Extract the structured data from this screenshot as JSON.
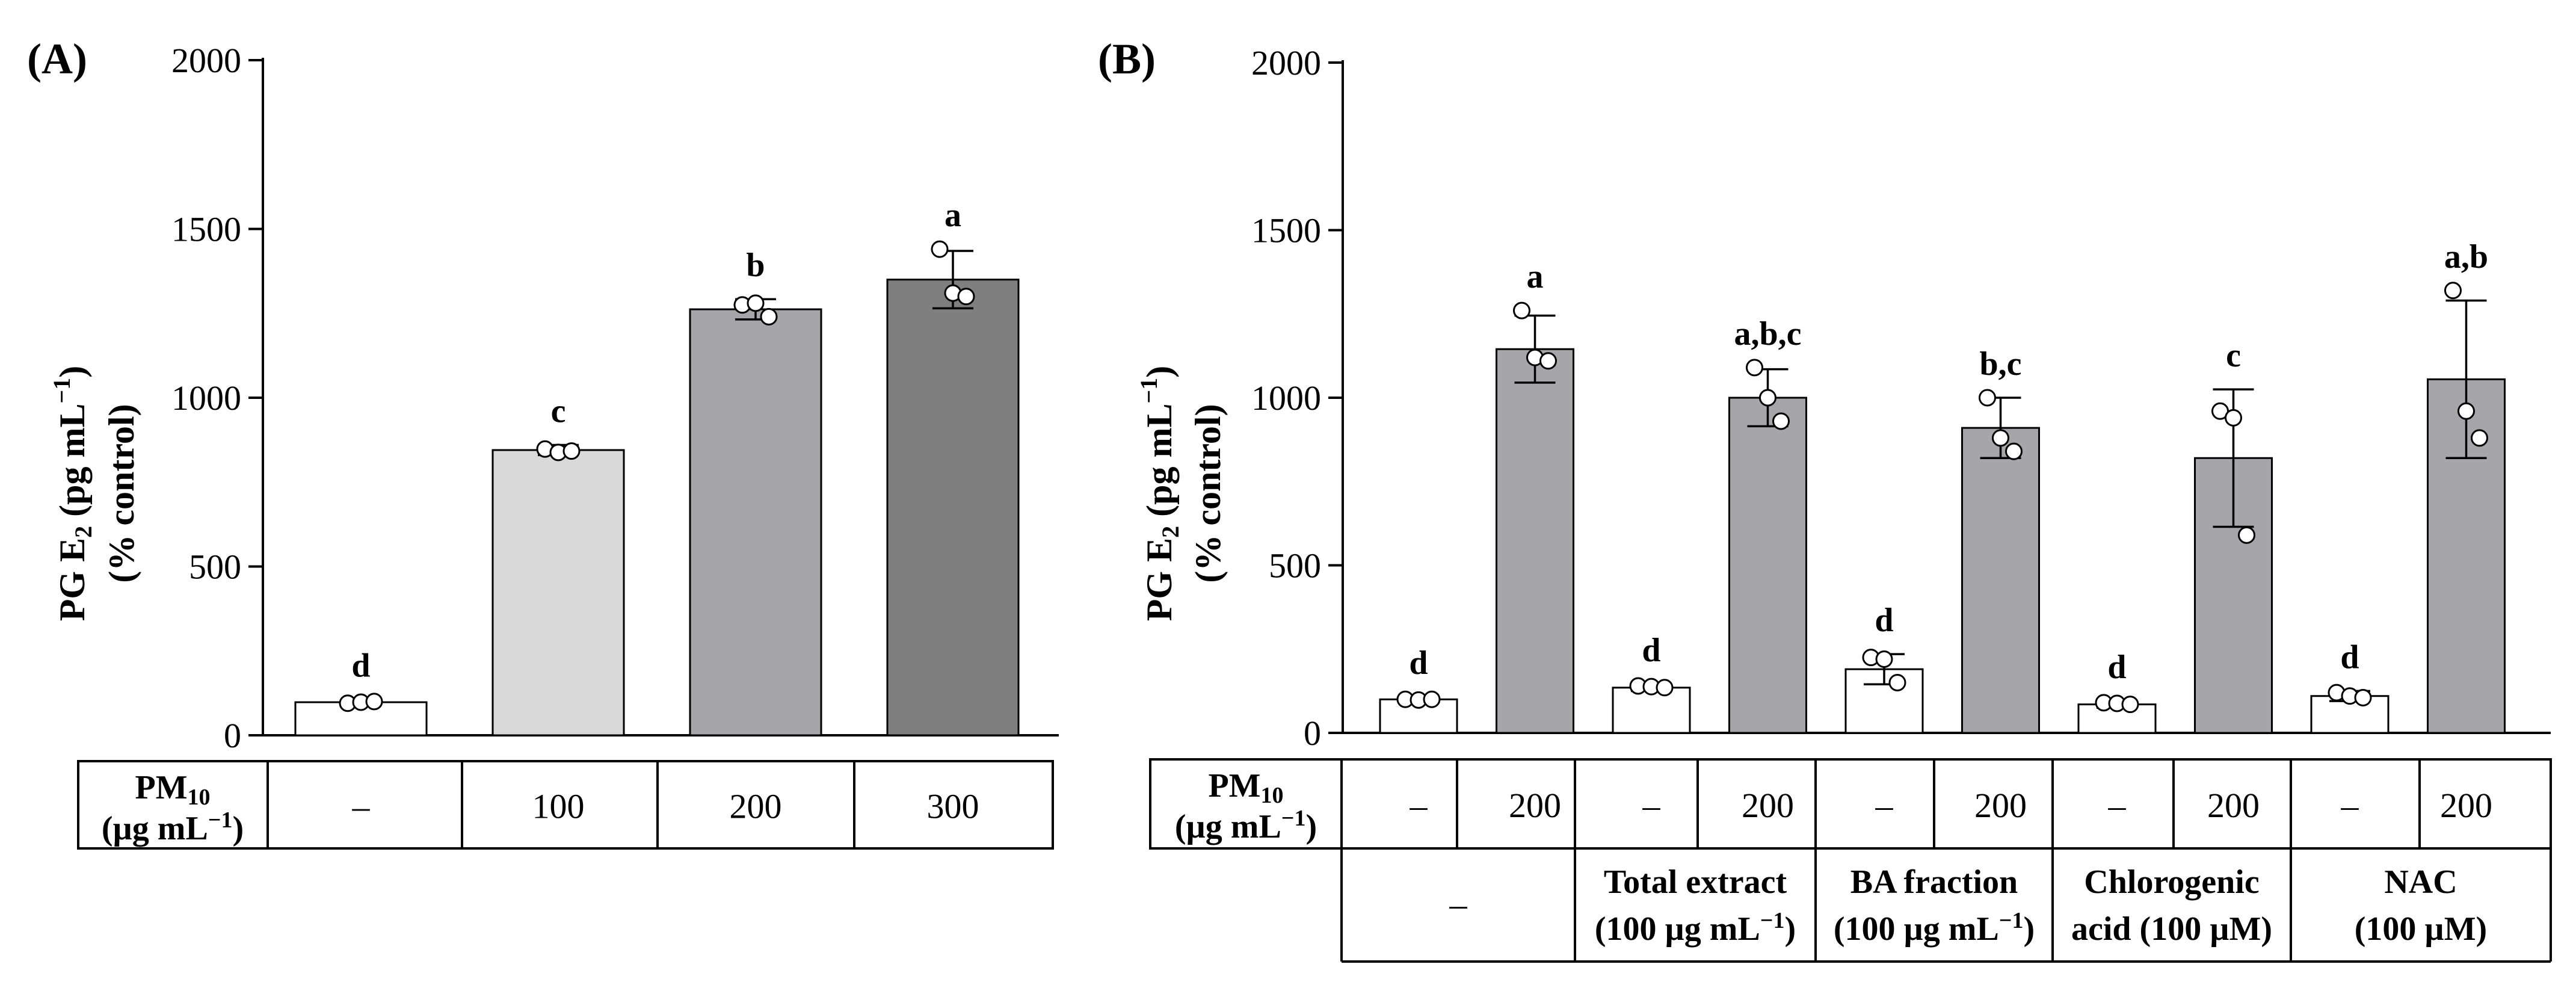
{
  "chart_data": [
    {
      "panel_label": "(A)",
      "type": "bar",
      "ylabel_line1": "PG E",
      "ylabel_sub": "2",
      "ylabel_rest": " (pg mL",
      "ylabel_sup": "−1",
      "ylabel_close": ")",
      "ylabel_line2": "(% control)",
      "ylim": [
        0,
        2000
      ],
      "yticks": [
        "0",
        "500",
        "1000",
        "1500",
        "2000"
      ],
      "categories": [
        "–",
        "100",
        "200",
        "300"
      ],
      "values": [
        98,
        845,
        1262,
        1350
      ],
      "errors": [
        8,
        15,
        30,
        85
      ],
      "points": [
        [
          95,
          98,
          100
        ],
        [
          848,
          838,
          842
        ],
        [
          1275,
          1280,
          1240
        ],
        [
          1440,
          1310,
          1300
        ]
      ],
      "letters": [
        "d",
        "c",
        "b",
        "a"
      ],
      "bar_colors": [
        "#ffffff",
        "#d9d9d9",
        "#a6a6a8",
        "#7f7f7f"
      ],
      "table": {
        "row_label_main": "PM",
        "row_label_sub": "10",
        "row_label_unit": "(µg mL",
        "row_label_sup": "−1",
        "row_label_close": ")"
      }
    },
    {
      "panel_label": "(B)",
      "type": "bar",
      "ylabel_line1": "PG E",
      "ylabel_sub": "2",
      "ylabel_rest": " (pg mL",
      "ylabel_sup": "−1",
      "ylabel_close": ")",
      "ylabel_line2": "(% control)",
      "ylim": [
        0,
        2000
      ],
      "yticks": [
        "0",
        "500",
        "1000",
        "1500",
        "2000"
      ],
      "categories": [
        "–",
        "200",
        "–",
        "200",
        "–",
        "200",
        "–",
        "200",
        "–",
        "200"
      ],
      "values": [
        100,
        1145,
        135,
        1000,
        190,
        910,
        85,
        820,
        110,
        1055
      ],
      "errors": [
        8,
        100,
        10,
        85,
        45,
        90,
        10,
        205,
        15,
        235
      ],
      "points": [
        [
          100,
          98,
          100
        ],
        [
          1260,
          1120,
          1110
        ],
        [
          140,
          138,
          135
        ],
        [
          1090,
          1000,
          930
        ],
        [
          225,
          220,
          150
        ],
        [
          1000,
          880,
          840
        ],
        [
          90,
          88,
          85
        ],
        [
          960,
          940,
          590
        ],
        [
          120,
          110,
          105
        ],
        [
          1320,
          960,
          880
        ]
      ],
      "letters": [
        "d",
        "a",
        "d",
        "a,b,c",
        "d",
        "b,c",
        "d",
        "c",
        "d",
        "a,b"
      ],
      "bar_colors": [
        "#ffffff",
        "#a6a6a8",
        "#ffffff",
        "#a6a6a8",
        "#ffffff",
        "#a6a6a8",
        "#ffffff",
        "#a6a6a8",
        "#ffffff",
        "#a6a6a8"
      ],
      "table": {
        "row_label_main": "PM",
        "row_label_sub": "10",
        "row_label_unit": "(µg mL",
        "row_label_sup": "−1",
        "row_label_close": ")",
        "groups": [
          {
            "line1": "–",
            "line2": ""
          },
          {
            "line1": "Total extract",
            "line2": "(100 µg mL",
            "line2_sup": "−1",
            "line2_close": ")"
          },
          {
            "line1": "BA fraction",
            "line2": "(100 µg mL",
            "line2_sup": "−1",
            "line2_close": ")"
          },
          {
            "line1": "Chlorogenic",
            "line2": "acid (100 µM)"
          },
          {
            "line1": "NAC",
            "line2": "(100 µM)"
          }
        ]
      }
    }
  ]
}
